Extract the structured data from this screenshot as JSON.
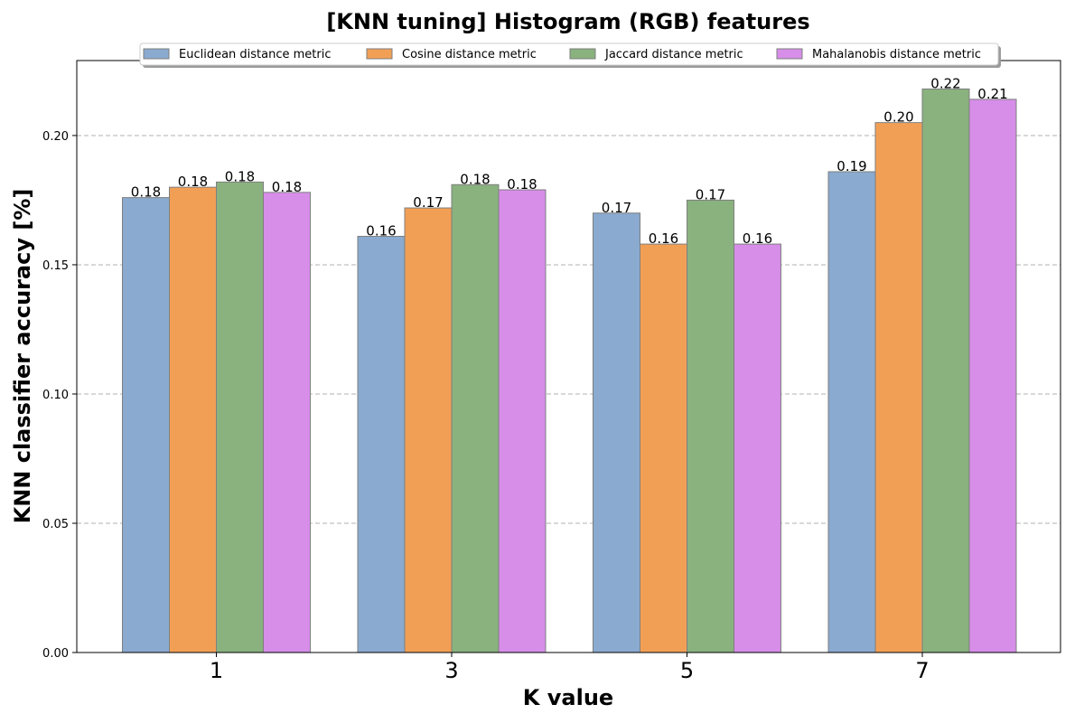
{
  "chart_data": {
    "type": "bar",
    "title": "[KNN tuning] Histogram (RGB) features",
    "xlabel": "K value",
    "ylabel": "KNN classifier accuracy [%]",
    "categories": [
      "1",
      "3",
      "5",
      "7"
    ],
    "ylim": [
      0,
      0.229
    ],
    "yticks": [
      "0.00",
      "0.05",
      "0.10",
      "0.15",
      "0.20"
    ],
    "grid": "y-dashed",
    "legend_position": "top-center",
    "series": [
      {
        "name": "Euclidean distance metric",
        "color": "#8aaacf",
        "values": [
          0.176,
          0.161,
          0.17,
          0.186
        ],
        "labels": [
          "0.18",
          "0.16",
          "0.17",
          "0.19"
        ]
      },
      {
        "name": "Cosine distance metric",
        "color": "#f29f56",
        "values": [
          0.18,
          0.172,
          0.158,
          0.205
        ],
        "labels": [
          "0.18",
          "0.17",
          "0.16",
          "0.20"
        ]
      },
      {
        "name": "Jaccard distance metric",
        "color": "#89b27e",
        "values": [
          0.182,
          0.181,
          0.175,
          0.218
        ],
        "labels": [
          "0.18",
          "0.18",
          "0.17",
          "0.22"
        ]
      },
      {
        "name": "Mahalanobis distance metric",
        "color": "#d68ee8",
        "values": [
          0.178,
          0.179,
          0.158,
          0.214
        ],
        "labels": [
          "0.18",
          "0.18",
          "0.16",
          "0.21"
        ]
      }
    ]
  }
}
